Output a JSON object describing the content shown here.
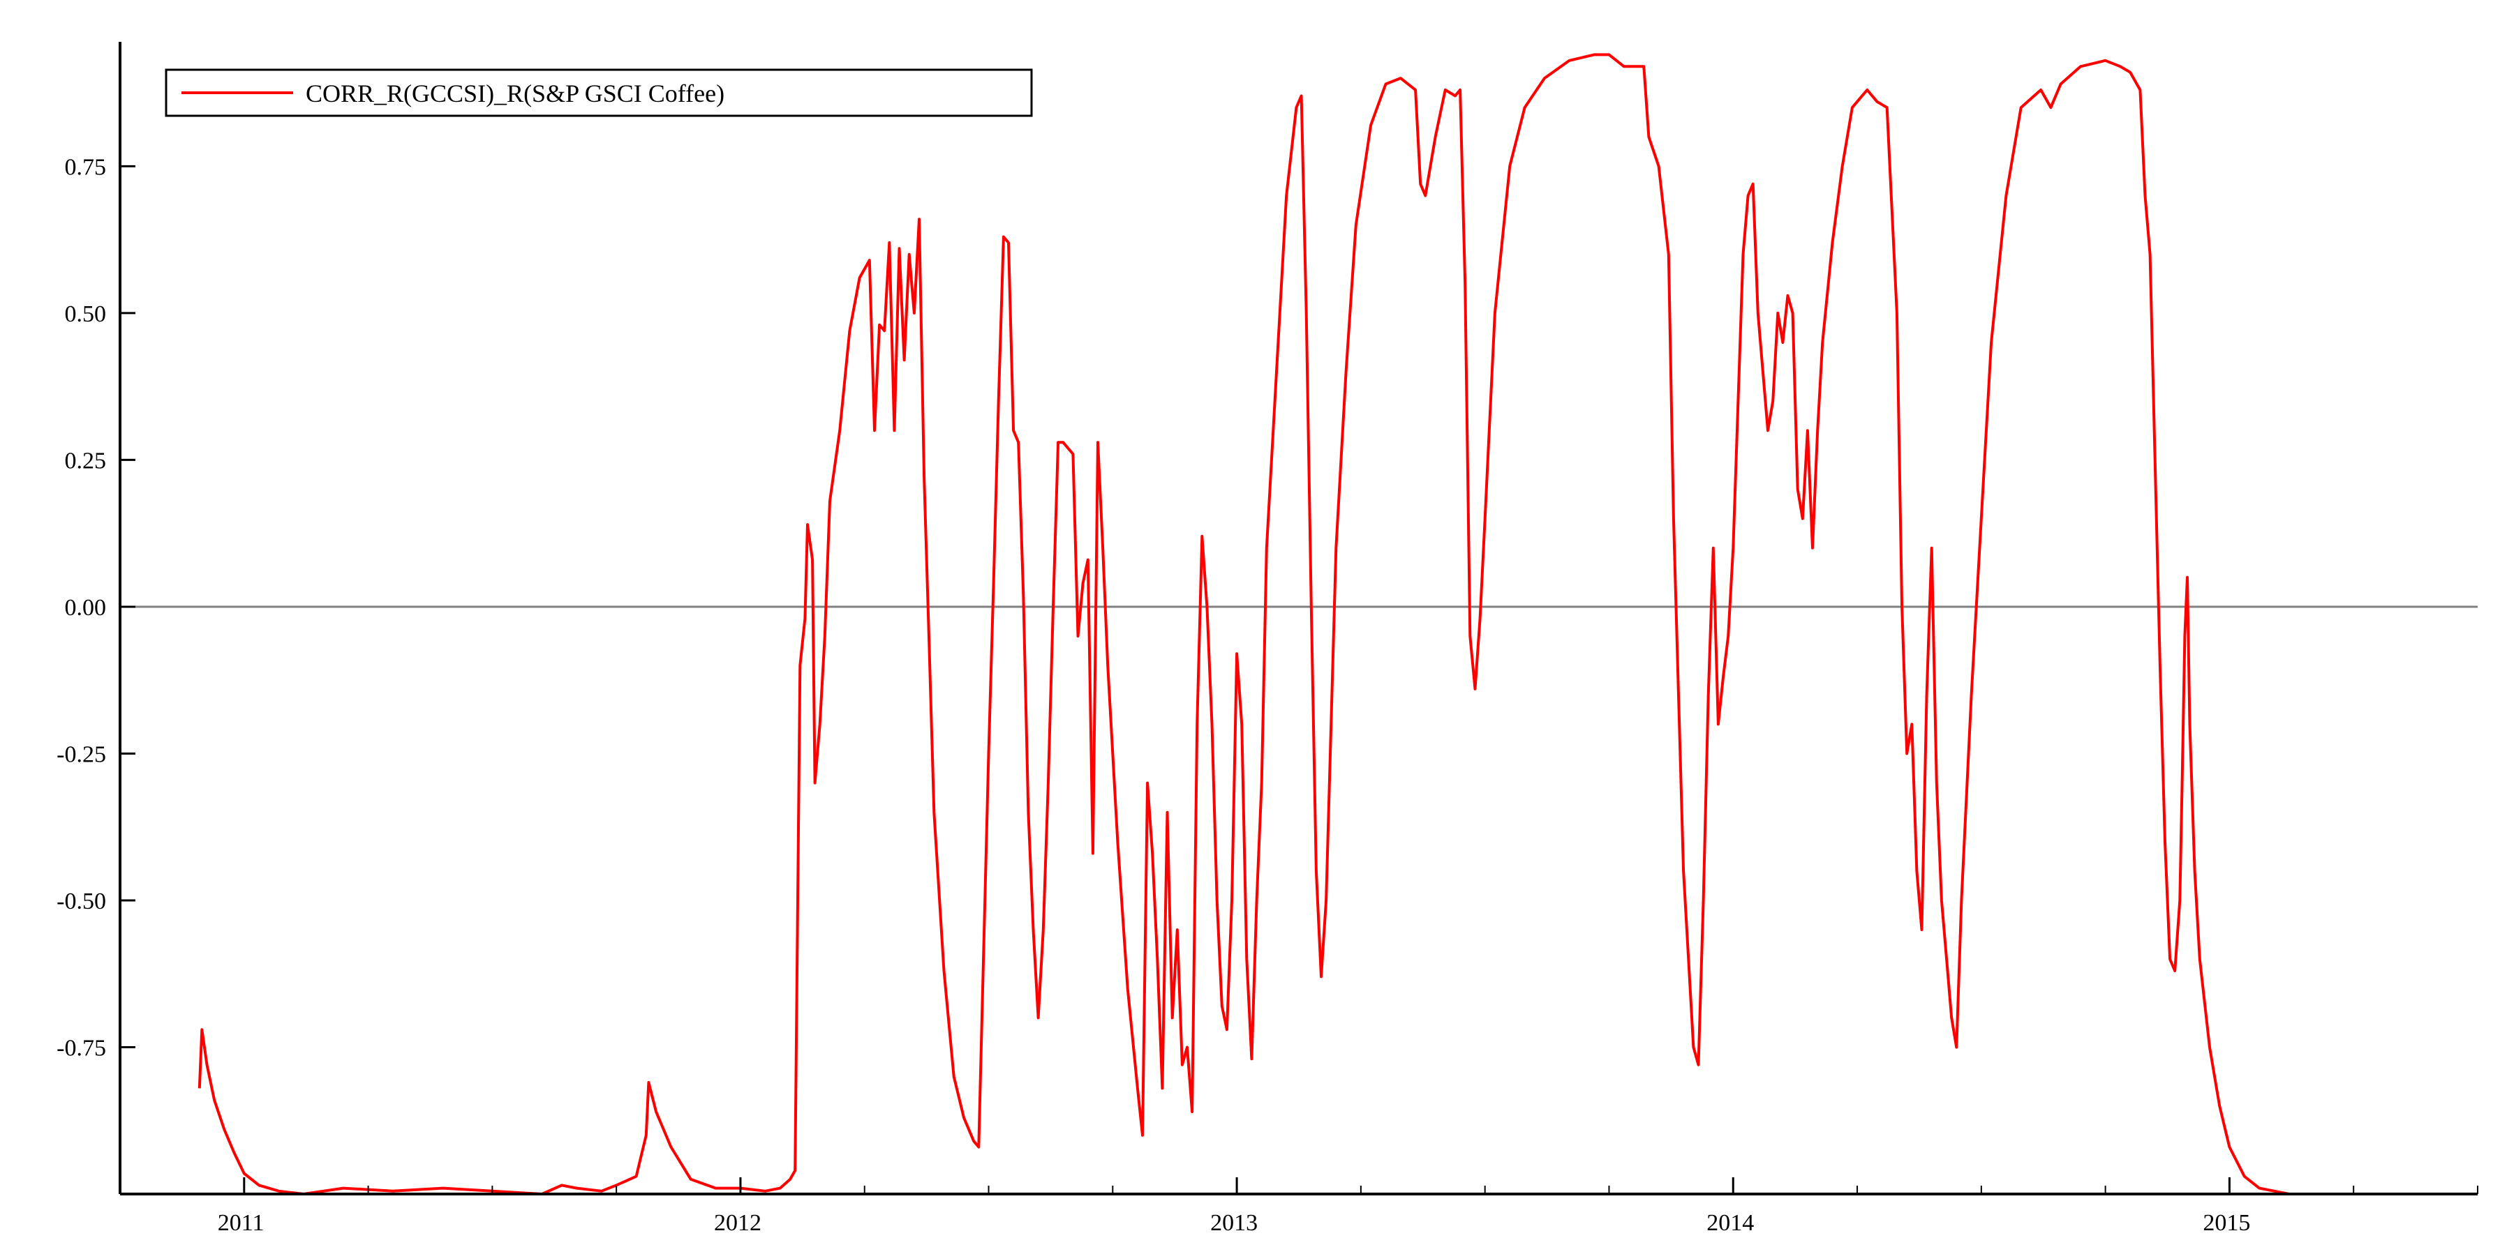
{
  "chart_data": {
    "type": "line",
    "title": "",
    "xlabel": "",
    "ylabel": "",
    "xlim": [
      2010.75,
      2015.5
    ],
    "ylim": [
      -1.0,
      0.95
    ],
    "x_ticks": [
      {
        "value": 2011,
        "label": "2011"
      },
      {
        "value": 2012,
        "label": "2012"
      },
      {
        "value": 2013,
        "label": "2013"
      },
      {
        "value": 2014,
        "label": "2014"
      },
      {
        "value": 2015,
        "label": "2015"
      }
    ],
    "y_ticks": [
      {
        "value": 0.75,
        "label": "0.75"
      },
      {
        "value": 0.5,
        "label": "0.50"
      },
      {
        "value": 0.25,
        "label": "0.25"
      },
      {
        "value": 0.0,
        "label": "0.00"
      },
      {
        "value": -0.25,
        "label": "-0.25"
      },
      {
        "value": -0.5,
        "label": "-0.50"
      },
      {
        "value": -0.75,
        "label": "-0.75"
      }
    ],
    "reference_line_y": 0.0,
    "grid": false,
    "legend_position": "top-left",
    "colors": {
      "series": "#ff0000",
      "axis": "#000000",
      "zero_line": "#808080"
    },
    "series": [
      {
        "name": "CORR_R(GCCSI)_R(S&P GSCI Coffee)",
        "color": "#ff0000",
        "points": [
          [
            2010.91,
            -0.82
          ],
          [
            2010.915,
            -0.72
          ],
          [
            2010.925,
            -0.78
          ],
          [
            2010.94,
            -0.84
          ],
          [
            2010.96,
            -0.89
          ],
          [
            2010.98,
            -0.93
          ],
          [
            2011.0,
            -0.965
          ],
          [
            2011.03,
            -0.985
          ],
          [
            2011.07,
            -0.995
          ],
          [
            2011.12,
            -1.0
          ],
          [
            2011.2,
            -0.99
          ],
          [
            2011.3,
            -0.995
          ],
          [
            2011.4,
            -0.99
          ],
          [
            2011.5,
            -0.995
          ],
          [
            2011.6,
            -1.0
          ],
          [
            2011.64,
            -0.985
          ],
          [
            2011.67,
            -0.99
          ],
          [
            2011.72,
            -0.995
          ],
          [
            2011.75,
            -0.985
          ],
          [
            2011.79,
            -0.97
          ],
          [
            2011.81,
            -0.9
          ],
          [
            2011.815,
            -0.81
          ],
          [
            2011.83,
            -0.86
          ],
          [
            2011.86,
            -0.92
          ],
          [
            2011.9,
            -0.975
          ],
          [
            2011.95,
            -0.99
          ],
          [
            2012.0,
            -0.99
          ],
          [
            2012.05,
            -0.995
          ],
          [
            2012.08,
            -0.99
          ],
          [
            2012.1,
            -0.975
          ],
          [
            2012.11,
            -0.96
          ],
          [
            2012.12,
            -0.1
          ],
          [
            2012.13,
            -0.02
          ],
          [
            2012.135,
            0.14
          ],
          [
            2012.145,
            0.08
          ],
          [
            2012.15,
            -0.3
          ],
          [
            2012.16,
            -0.2
          ],
          [
            2012.17,
            -0.05
          ],
          [
            2012.18,
            0.18
          ],
          [
            2012.2,
            0.3
          ],
          [
            2012.22,
            0.47
          ],
          [
            2012.24,
            0.56
          ],
          [
            2012.26,
            0.59
          ],
          [
            2012.27,
            0.3
          ],
          [
            2012.28,
            0.48
          ],
          [
            2012.29,
            0.47
          ],
          [
            2012.3,
            0.62
          ],
          [
            2012.31,
            0.3
          ],
          [
            2012.32,
            0.61
          ],
          [
            2012.33,
            0.42
          ],
          [
            2012.34,
            0.6
          ],
          [
            2012.35,
            0.5
          ],
          [
            2012.36,
            0.66
          ],
          [
            2012.37,
            0.22
          ],
          [
            2012.38,
            -0.06
          ],
          [
            2012.39,
            -0.35
          ],
          [
            2012.41,
            -0.62
          ],
          [
            2012.43,
            -0.8
          ],
          [
            2012.45,
            -0.87
          ],
          [
            2012.47,
            -0.91
          ],
          [
            2012.48,
            -0.92
          ],
          [
            2012.5,
            -0.25
          ],
          [
            2012.51,
            0.04
          ],
          [
            2012.52,
            0.35
          ],
          [
            2012.53,
            0.63
          ],
          [
            2012.54,
            0.62
          ],
          [
            2012.55,
            0.3
          ],
          [
            2012.56,
            0.28
          ],
          [
            2012.57,
            0.02
          ],
          [
            2012.58,
            -0.35
          ],
          [
            2012.59,
            -0.55
          ],
          [
            2012.6,
            -0.7
          ],
          [
            2012.61,
            -0.55
          ],
          [
            2012.62,
            -0.3
          ],
          [
            2012.63,
            0.0
          ],
          [
            2012.64,
            0.28
          ],
          [
            2012.65,
            0.28
          ],
          [
            2012.67,
            0.26
          ],
          [
            2012.68,
            -0.05
          ],
          [
            2012.69,
            0.04
          ],
          [
            2012.7,
            0.08
          ],
          [
            2012.71,
            -0.42
          ],
          [
            2012.72,
            0.28
          ],
          [
            2012.73,
            0.1
          ],
          [
            2012.74,
            -0.1
          ],
          [
            2012.76,
            -0.4
          ],
          [
            2012.78,
            -0.65
          ],
          [
            2012.8,
            -0.82
          ],
          [
            2012.81,
            -0.9
          ],
          [
            2012.82,
            -0.3
          ],
          [
            2012.83,
            -0.42
          ],
          [
            2012.84,
            -0.6
          ],
          [
            2012.85,
            -0.82
          ],
          [
            2012.86,
            -0.35
          ],
          [
            2012.87,
            -0.7
          ],
          [
            2012.88,
            -0.55
          ],
          [
            2012.89,
            -0.78
          ],
          [
            2012.9,
            -0.75
          ],
          [
            2012.91,
            -0.86
          ],
          [
            2012.92,
            -0.2
          ],
          [
            2012.93,
            0.12
          ],
          [
            2012.94,
            0.0
          ],
          [
            2012.95,
            -0.2
          ],
          [
            2012.96,
            -0.5
          ],
          [
            2012.97,
            -0.68
          ],
          [
            2012.98,
            -0.72
          ],
          [
            2012.99,
            -0.5
          ],
          [
            2013.0,
            -0.08
          ],
          [
            2013.01,
            -0.2
          ],
          [
            2013.02,
            -0.6
          ],
          [
            2013.03,
            -0.77
          ],
          [
            2013.04,
            -0.5
          ],
          [
            2013.05,
            -0.3
          ],
          [
            2013.06,
            0.1
          ],
          [
            2013.08,
            0.4
          ],
          [
            2013.1,
            0.7
          ],
          [
            2013.12,
            0.85
          ],
          [
            2013.13,
            0.87
          ],
          [
            2013.14,
            0.5
          ],
          [
            2013.15,
            0.0
          ],
          [
            2013.16,
            -0.45
          ],
          [
            2013.17,
            -0.63
          ],
          [
            2013.18,
            -0.5
          ],
          [
            2013.19,
            -0.2
          ],
          [
            2013.2,
            0.1
          ],
          [
            2013.22,
            0.4
          ],
          [
            2013.24,
            0.65
          ],
          [
            2013.27,
            0.82
          ],
          [
            2013.3,
            0.89
          ],
          [
            2013.33,
            0.9
          ],
          [
            2013.36,
            0.88
          ],
          [
            2013.37,
            0.72
          ],
          [
            2013.38,
            0.7
          ],
          [
            2013.4,
            0.8
          ],
          [
            2013.42,
            0.88
          ],
          [
            2013.44,
            0.87
          ],
          [
            2013.45,
            0.88
          ],
          [
            2013.46,
            0.55
          ],
          [
            2013.47,
            -0.05
          ],
          [
            2013.48,
            -0.14
          ],
          [
            2013.49,
            -0.02
          ],
          [
            2013.5,
            0.15
          ],
          [
            2013.52,
            0.5
          ],
          [
            2013.55,
            0.75
          ],
          [
            2013.58,
            0.85
          ],
          [
            2013.62,
            0.9
          ],
          [
            2013.67,
            0.93
          ],
          [
            2013.72,
            0.94
          ],
          [
            2013.75,
            0.94
          ],
          [
            2013.78,
            0.92
          ],
          [
            2013.82,
            0.92
          ],
          [
            2013.83,
            0.8
          ],
          [
            2013.85,
            0.75
          ],
          [
            2013.87,
            0.6
          ],
          [
            2013.88,
            0.15
          ],
          [
            2013.89,
            -0.15
          ],
          [
            2013.9,
            -0.45
          ],
          [
            2013.91,
            -0.6
          ],
          [
            2013.92,
            -0.75
          ],
          [
            2013.93,
            -0.78
          ],
          [
            2013.94,
            -0.5
          ],
          [
            2013.95,
            -0.15
          ],
          [
            2013.96,
            0.1
          ],
          [
            2013.97,
            -0.2
          ],
          [
            2013.98,
            -0.12
          ],
          [
            2013.99,
            -0.05
          ],
          [
            2014.0,
            0.1
          ],
          [
            2014.01,
            0.35
          ],
          [
            2014.02,
            0.6
          ],
          [
            2014.03,
            0.7
          ],
          [
            2014.04,
            0.72
          ],
          [
            2014.05,
            0.5
          ],
          [
            2014.06,
            0.4
          ],
          [
            2014.07,
            0.3
          ],
          [
            2014.08,
            0.35
          ],
          [
            2014.09,
            0.5
          ],
          [
            2014.1,
            0.45
          ],
          [
            2014.11,
            0.53
          ],
          [
            2014.12,
            0.5
          ],
          [
            2014.13,
            0.2
          ],
          [
            2014.14,
            0.15
          ],
          [
            2014.15,
            0.3
          ],
          [
            2014.16,
            0.1
          ],
          [
            2014.17,
            0.3
          ],
          [
            2014.18,
            0.45
          ],
          [
            2014.2,
            0.62
          ],
          [
            2014.22,
            0.75
          ],
          [
            2014.24,
            0.85
          ],
          [
            2014.27,
            0.88
          ],
          [
            2014.29,
            0.86
          ],
          [
            2014.31,
            0.85
          ],
          [
            2014.33,
            0.5
          ],
          [
            2014.34,
            0.0
          ],
          [
            2014.35,
            -0.25
          ],
          [
            2014.36,
            -0.2
          ],
          [
            2014.37,
            -0.45
          ],
          [
            2014.38,
            -0.55
          ],
          [
            2014.39,
            -0.15
          ],
          [
            2014.4,
            0.1
          ],
          [
            2014.41,
            -0.3
          ],
          [
            2014.42,
            -0.5
          ],
          [
            2014.43,
            -0.6
          ],
          [
            2014.44,
            -0.7
          ],
          [
            2014.45,
            -0.75
          ],
          [
            2014.46,
            -0.5
          ],
          [
            2014.48,
            -0.15
          ],
          [
            2014.5,
            0.15
          ],
          [
            2014.52,
            0.45
          ],
          [
            2014.55,
            0.7
          ],
          [
            2014.58,
            0.85
          ],
          [
            2014.62,
            0.88
          ],
          [
            2014.64,
            0.85
          ],
          [
            2014.66,
            0.89
          ],
          [
            2014.7,
            0.92
          ],
          [
            2014.75,
            0.93
          ],
          [
            2014.78,
            0.92
          ],
          [
            2014.8,
            0.91
          ],
          [
            2014.82,
            0.88
          ],
          [
            2014.83,
            0.7
          ],
          [
            2014.84,
            0.6
          ],
          [
            2014.85,
            0.25
          ],
          [
            2014.86,
            -0.1
          ],
          [
            2014.87,
            -0.4
          ],
          [
            2014.88,
            -0.6
          ],
          [
            2014.89,
            -0.62
          ],
          [
            2014.9,
            -0.5
          ],
          [
            2014.905,
            -0.28
          ],
          [
            2014.91,
            -0.05
          ],
          [
            2014.915,
            0.05
          ],
          [
            2014.92,
            -0.2
          ],
          [
            2014.93,
            -0.45
          ],
          [
            2014.94,
            -0.6
          ],
          [
            2014.96,
            -0.75
          ],
          [
            2014.98,
            -0.85
          ],
          [
            2015.0,
            -0.92
          ],
          [
            2015.03,
            -0.97
          ],
          [
            2015.06,
            -0.99
          ],
          [
            2015.12,
            -1.0
          ],
          [
            2015.3,
            -1.0
          ],
          [
            2015.5,
            -1.0
          ]
        ]
      }
    ]
  }
}
